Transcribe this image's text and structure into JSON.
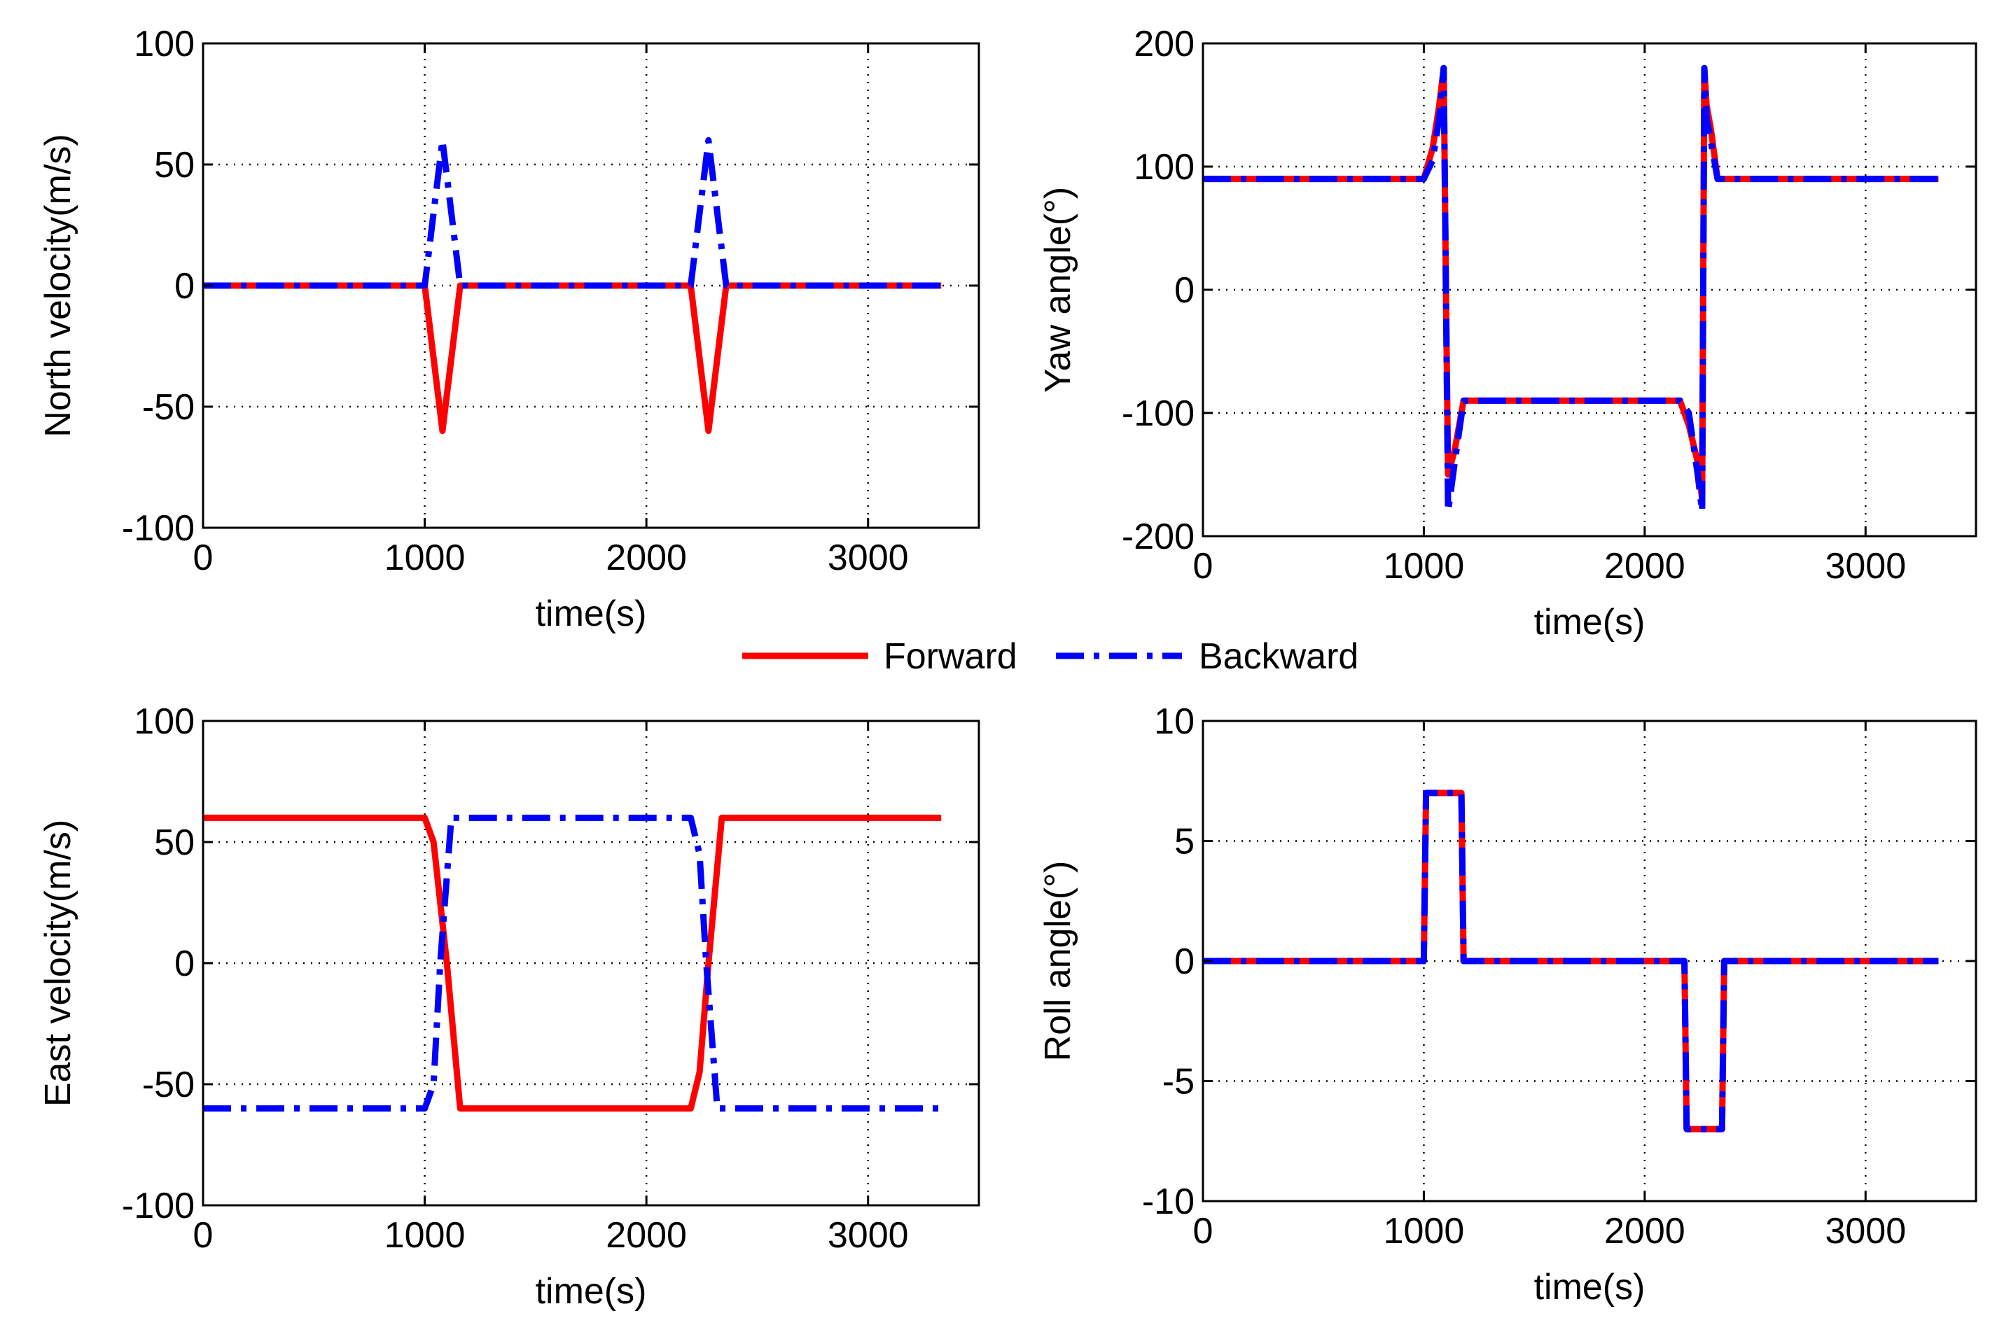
{
  "legend": {
    "placement": "center",
    "entries": [
      {
        "name": "Forward",
        "color": "#ff0000",
        "style": "solid"
      },
      {
        "name": "Backward",
        "color": "#0000ff",
        "style": "dash-dot"
      }
    ]
  },
  "chart_data": [
    {
      "type": "line",
      "xlabel": "time(s)",
      "ylabel": "North velocity(m/s)",
      "xlim": [
        0,
        3500
      ],
      "ylim": [
        -100,
        100
      ],
      "xticks": [
        0,
        1000,
        2000,
        3000
      ],
      "xtick_labels": [
        "0",
        "1000",
        "2000",
        "3000"
      ],
      "yticks": [
        -100,
        -50,
        0,
        50,
        100
      ],
      "ytick_labels": [
        "-100",
        "-50",
        "0",
        "50",
        "100"
      ],
      "grid": true,
      "series": [
        {
          "name": "Forward",
          "color": "#ff0000",
          "x": [
            0,
            1000,
            1040,
            1080,
            1120,
            1160,
            2200,
            2240,
            2280,
            2320,
            2360,
            3330
          ],
          "y": [
            0,
            0,
            -30,
            -60,
            -30,
            0,
            0,
            -30,
            -60,
            -30,
            0,
            0
          ]
        },
        {
          "name": "Backward",
          "color": "#0000ff",
          "x": [
            0,
            1000,
            1040,
            1080,
            1120,
            1160,
            2200,
            2240,
            2280,
            2320,
            2360,
            3330
          ],
          "y": [
            0,
            0,
            30,
            60,
            30,
            0,
            0,
            30,
            60,
            30,
            0,
            0
          ]
        }
      ]
    },
    {
      "type": "line",
      "xlabel": "time(s)",
      "ylabel": "Yaw angle(°)",
      "xlim": [
        0,
        3500
      ],
      "ylim": [
        -200,
        200
      ],
      "xticks": [
        0,
        1000,
        2000,
        3000
      ],
      "xtick_labels": [
        "0",
        "1000",
        "2000",
        "3000"
      ],
      "yticks": [
        -200,
        -100,
        0,
        100,
        200
      ],
      "ytick_labels": [
        "-200",
        "-100",
        "0",
        "100",
        "200"
      ],
      "grid": true,
      "series": [
        {
          "name": "Forward",
          "color": "#ff0000",
          "x": [
            0,
            1000,
            1040,
            1070,
            1090,
            1100,
            1110,
            1140,
            1180,
            2160,
            2200,
            2240,
            2260,
            2270,
            2280,
            2300,
            2330,
            3330
          ],
          "y": [
            90,
            90,
            115,
            150,
            180,
            0,
            -150,
            -130,
            -90,
            -90,
            -110,
            -140,
            -170,
            180,
            150,
            130,
            90,
            90
          ]
        },
        {
          "name": "Backward",
          "color": "#0000ff",
          "x": [
            0,
            1000,
            1040,
            1070,
            1090,
            1100,
            1110,
            1140,
            1180,
            2160,
            2200,
            2240,
            2260,
            2270,
            2280,
            2300,
            2330,
            3330
          ],
          "y": [
            90,
            90,
            105,
            140,
            180,
            0,
            -180,
            -140,
            -90,
            -90,
            -100,
            -150,
            -180,
            180,
            140,
            120,
            90,
            90
          ]
        }
      ]
    },
    {
      "type": "line",
      "xlabel": "time(s)",
      "ylabel": "East velocity(m/s)",
      "xlim": [
        0,
        3500
      ],
      "ylim": [
        -100,
        100
      ],
      "xticks": [
        0,
        1000,
        2000,
        3000
      ],
      "xtick_labels": [
        "0",
        "1000",
        "2000",
        "3000"
      ],
      "yticks": [
        -100,
        -50,
        0,
        50,
        100
      ],
      "ytick_labels": [
        "-100",
        "-50",
        "0",
        "50",
        "100"
      ],
      "grid": true,
      "series": [
        {
          "name": "Forward",
          "color": "#ff0000",
          "x": [
            0,
            1000,
            1040,
            1100,
            1160,
            2200,
            2240,
            2280,
            2340,
            3330
          ],
          "y": [
            60,
            60,
            50,
            0,
            -60,
            -60,
            -45,
            0,
            60,
            60
          ]
        },
        {
          "name": "Backward",
          "color": "#0000ff",
          "x": [
            0,
            1000,
            1040,
            1070,
            1120,
            2200,
            2240,
            2270,
            2320,
            3330
          ],
          "y": [
            -60,
            -60,
            -50,
            0,
            60,
            60,
            45,
            0,
            -60,
            -60
          ]
        }
      ]
    },
    {
      "type": "line",
      "xlabel": "time(s)",
      "ylabel": "Roll angle(°)",
      "xlim": [
        0,
        3500
      ],
      "ylim": [
        -10,
        10
      ],
      "xticks": [
        0,
        1000,
        2000,
        3000
      ],
      "xtick_labels": [
        "0",
        "1000",
        "2000",
        "3000"
      ],
      "yticks": [
        -10,
        -5,
        0,
        5,
        10
      ],
      "ytick_labels": [
        "-10",
        "-5",
        "0",
        "5",
        "10"
      ],
      "grid": true,
      "series": [
        {
          "name": "Forward",
          "color": "#ff0000",
          "x": [
            0,
            1000,
            1010,
            1170,
            1180,
            2180,
            2190,
            2350,
            2360,
            3330
          ],
          "y": [
            0,
            0,
            7,
            7,
            0,
            0,
            -7,
            -7,
            0,
            0
          ]
        },
        {
          "name": "Backward",
          "color": "#0000ff",
          "x": [
            0,
            1000,
            1010,
            1170,
            1180,
            2180,
            2190,
            2350,
            2360,
            3330
          ],
          "y": [
            0,
            0,
            7,
            7,
            0,
            0,
            -7,
            -7,
            0,
            0
          ]
        }
      ]
    }
  ]
}
